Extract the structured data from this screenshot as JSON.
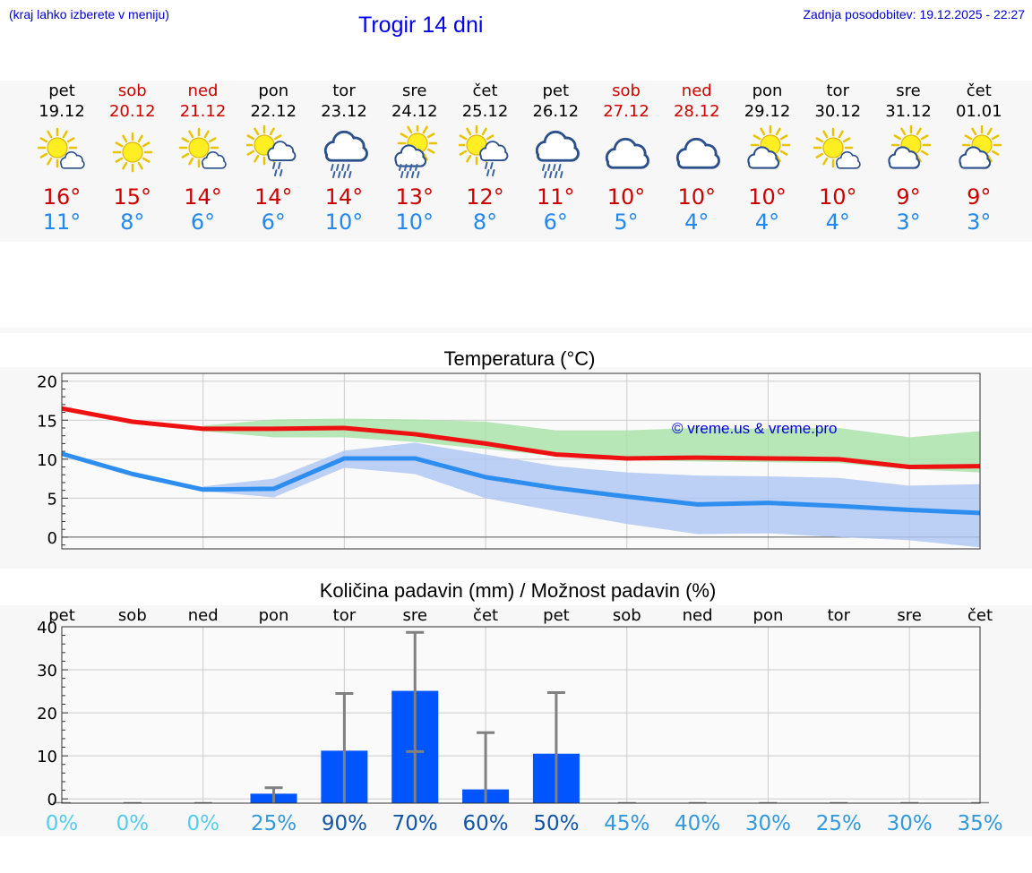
{
  "header": {
    "menu_note": "(kraj lahko izberete v meniju)",
    "title": "Trogir 14 dni",
    "last_update": "Zadnja posodobitev: 19.12.2025 - 22:27"
  },
  "days": [
    {
      "name": "pet",
      "date": "19.12",
      "weekend": false,
      "icon": "sun-small-cloud-icon",
      "tmax": "16°",
      "tmin": "11°"
    },
    {
      "name": "sob",
      "date": "20.12",
      "weekend": true,
      "icon": "sun-icon",
      "tmax": "15°",
      "tmin": "8°"
    },
    {
      "name": "ned",
      "date": "21.12",
      "weekend": true,
      "icon": "sun-small-cloud-icon",
      "tmax": "14°",
      "tmin": "6°"
    },
    {
      "name": "pon",
      "date": "22.12",
      "weekend": false,
      "icon": "sun-cloud-light-rain-icon",
      "tmax": "14°",
      "tmin": "6°"
    },
    {
      "name": "tor",
      "date": "23.12",
      "weekend": false,
      "icon": "cloud-rain-icon",
      "tmax": "14°",
      "tmin": "10°"
    },
    {
      "name": "sre",
      "date": "24.12",
      "weekend": false,
      "icon": "sun-cloud-rain-icon",
      "tmax": "13°",
      "tmin": "10°"
    },
    {
      "name": "čet",
      "date": "25.12",
      "weekend": false,
      "icon": "sun-cloud-light-rain-icon",
      "tmax": "12°",
      "tmin": "8°"
    },
    {
      "name": "pet",
      "date": "26.12",
      "weekend": false,
      "icon": "cloud-rain-icon",
      "tmax": "11°",
      "tmin": "6°"
    },
    {
      "name": "sob",
      "date": "27.12",
      "weekend": true,
      "icon": "cloud-icon",
      "tmax": "10°",
      "tmin": "5°"
    },
    {
      "name": "ned",
      "date": "28.12",
      "weekend": true,
      "icon": "cloud-icon",
      "tmax": "10°",
      "tmin": "4°"
    },
    {
      "name": "pon",
      "date": "29.12",
      "weekend": false,
      "icon": "sun-cloud-icon",
      "tmax": "10°",
      "tmin": "4°"
    },
    {
      "name": "tor",
      "date": "30.12",
      "weekend": false,
      "icon": "sun-small-cloud-icon",
      "tmax": "10°",
      "tmin": "4°"
    },
    {
      "name": "sre",
      "date": "31.12",
      "weekend": false,
      "icon": "sun-cloud-icon",
      "tmax": "9°",
      "tmin": "3°"
    },
    {
      "name": "čet",
      "date": "01.01",
      "weekend": false,
      "icon": "sun-cloud-icon",
      "tmax": "9°",
      "tmin": "3°"
    }
  ],
  "chart_data": [
    {
      "type": "line",
      "title": "Temperatura (°C)",
      "watermark": "© vreme.us & vreme.pro",
      "ylim": [
        -1.5,
        21
      ],
      "yticks": [
        0,
        5,
        10,
        15,
        20
      ],
      "series": [
        {
          "name": "max",
          "color": "#ee1111",
          "values": [
            16.5,
            14.8,
            13.9,
            13.9,
            14,
            13.2,
            12,
            10.6,
            10.1,
            10.2,
            10.1,
            10,
            9,
            9.1
          ]
        },
        {
          "name": "min",
          "color": "#2e8ef0",
          "values": [
            10.7,
            8.1,
            6.1,
            6.2,
            10.1,
            10.1,
            7.7,
            6.3,
            5.2,
            4.2,
            4.4,
            4,
            3.5,
            3.1
          ]
        }
      ],
      "bands": [
        {
          "name": "max-range",
          "color": "#a8e2a8",
          "upper": [
            null,
            null,
            14.3,
            15.1,
            15.2,
            15.1,
            14.8,
            13.7,
            13.7,
            14,
            13.9,
            14,
            12.8,
            13.6
          ],
          "lower": [
            null,
            null,
            13.6,
            12.8,
            12.8,
            12.2,
            11.3,
            10.4,
            9.9,
            9.7,
            9.6,
            9.5,
            8.7,
            8.3
          ]
        },
        {
          "name": "min-range",
          "color": "#aec6f3",
          "upper": [
            null,
            null,
            6.5,
            7.5,
            11.1,
            12.1,
            10.6,
            9.1,
            8.3,
            7.9,
            7.8,
            7.6,
            6.6,
            6.8
          ],
          "lower": [
            null,
            null,
            5.9,
            5.1,
            8.9,
            8.1,
            5,
            3.3,
            1.7,
            0.4,
            0.5,
            0,
            -0.4,
            -1.3
          ]
        }
      ]
    },
    {
      "type": "bar",
      "title": "Količina padavin (mm) / Možnost padavin (%)",
      "categories": [
        "pet",
        "sob",
        "ned",
        "pon",
        "tor",
        "sre",
        "čet",
        "pet",
        "sob",
        "ned",
        "pon",
        "tor",
        "sre",
        "čet"
      ],
      "ylim": [
        -1,
        40
      ],
      "yticks": [
        0,
        10,
        20,
        30,
        40
      ],
      "values": [
        0,
        0,
        0,
        1.2,
        11.2,
        25.1,
        2.2,
        10.5,
        0,
        0,
        0,
        0,
        0,
        0
      ],
      "error_high": [
        0,
        0,
        0,
        2.6,
        24.5,
        38.7,
        15.4,
        24.7,
        0,
        0,
        0,
        0,
        0,
        0
      ],
      "error_low": [
        0,
        0,
        0,
        0,
        0,
        11,
        0,
        0,
        0,
        0,
        0,
        0,
        0,
        0
      ],
      "probability": [
        "0%",
        "0%",
        "0%",
        "25%",
        "90%",
        "70%",
        "60%",
        "50%",
        "45%",
        "40%",
        "30%",
        "25%",
        "30%",
        "35%"
      ],
      "probability_colors": [
        "#55ccee",
        "#55ccee",
        "#55ccee",
        "#3399dd",
        "#1155aa",
        "#1155aa",
        "#1155aa",
        "#1155aa",
        "#3399dd",
        "#3399dd",
        "#3399dd",
        "#3399dd",
        "#3399dd",
        "#3399dd"
      ]
    }
  ]
}
